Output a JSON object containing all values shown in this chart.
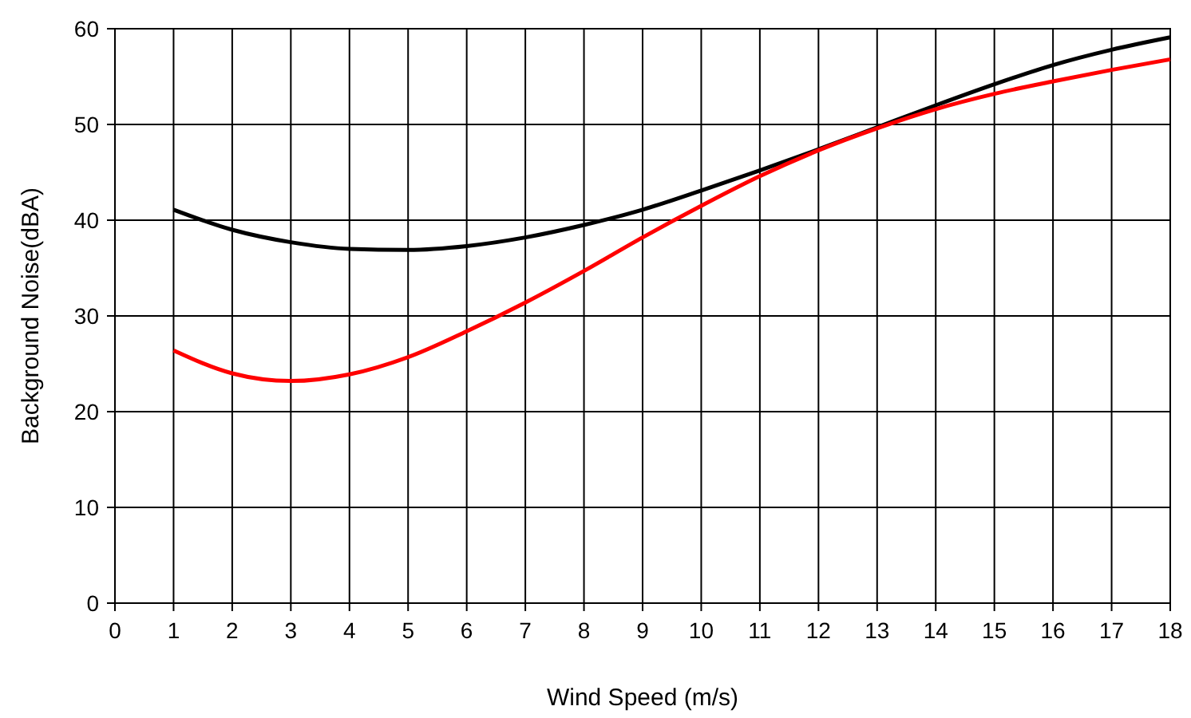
{
  "chart_data": {
    "type": "line",
    "xlabel": "Wind Speed (m/s)",
    "ylabel": "Background Noise(dBA)",
    "x": [
      1,
      2,
      3,
      4,
      5,
      6,
      7,
      8,
      9,
      10,
      11,
      12,
      13,
      14,
      15,
      16,
      17,
      18
    ],
    "series": [
      {
        "color": "#000000",
        "values": [
          41.1,
          39,
          37.7,
          37,
          36.9,
          37.3,
          38.2,
          39.5,
          41.1,
          43.1,
          45.2,
          47.4,
          49.7,
          52,
          54.2,
          56.2,
          57.8,
          59.1
        ]
      },
      {
        "color": "#ff0000",
        "values": [
          26.4,
          24,
          23.2,
          23.9,
          25.7,
          28.4,
          31.4,
          34.7,
          38.2,
          41.5,
          44.6,
          47.3,
          49.6,
          51.6,
          53.2,
          54.5,
          55.7,
          56.8
        ]
      }
    ],
    "xlim": [
      0,
      18
    ],
    "xticks": [
      0,
      1,
      2,
      3,
      4,
      5,
      6,
      7,
      8,
      9,
      10,
      11,
      12,
      13,
      14,
      15,
      16,
      17,
      18
    ],
    "ylim": [
      0,
      60
    ],
    "yticks": [
      0,
      10,
      20,
      30,
      40,
      50,
      60
    ],
    "grid": true,
    "marker": "none",
    "line_style": "solid"
  }
}
